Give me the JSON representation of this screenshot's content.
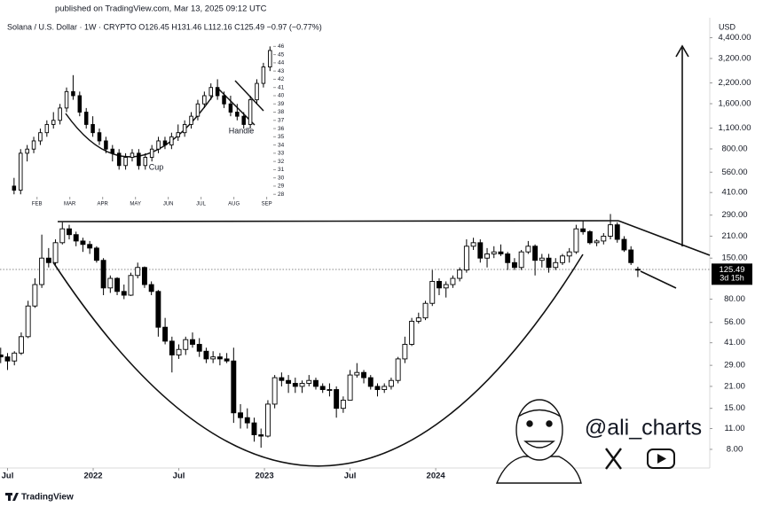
{
  "published": "published on TradingView.com, Mar 13, 2025 09:12 UTC",
  "watermark": "@ali_charts",
  "footer": "TradingView",
  "chart_data": [
    {
      "type": "candlestick",
      "title": "Solana / U.S. Dollar · 1W · CRYPTO  O126.45 H131.46 L112.16 C125.49 −0.97 (−0.77%)",
      "y_label": "USD",
      "countdown": "3d 15h",
      "log_scale": true,
      "up_color": "#ffffff",
      "down_color": "#000000",
      "xlim": [
        2021.456,
        2025.6
      ],
      "ylim": [
        6.01,
        5816
      ],
      "xticks": [
        {
          "value": 2021.5,
          "label": "Jul"
        },
        2022,
        {
          "value": 2022.5,
          "label": "Jul"
        },
        2023,
        {
          "value": 2023.5,
          "label": "Jul"
        },
        2024
      ],
      "yticks": [
        {
          "value": 8,
          "label": "8.00"
        },
        {
          "value": 11,
          "label": "11.00"
        },
        {
          "value": 15,
          "label": "15.00"
        },
        {
          "value": 21,
          "label": "21.00"
        },
        {
          "value": 29,
          "label": "29.00"
        },
        {
          "value": 41,
          "label": "41.00"
        },
        {
          "value": 56,
          "label": "56.00"
        },
        {
          "value": 80,
          "label": "80.00"
        },
        {
          "value": 150,
          "label": "150.00"
        },
        {
          "value": 210,
          "label": "210.00"
        },
        {
          "value": 290,
          "label": "290.00"
        },
        {
          "value": 410,
          "label": "410.00"
        },
        {
          "value": 560,
          "label": "560.00"
        },
        {
          "value": 800,
          "label": "800.00"
        },
        {
          "value": 1100,
          "label": "1,100.00"
        },
        {
          "value": 1600,
          "label": "1,600.00"
        },
        {
          "value": 2200,
          "label": "2,200.00"
        },
        {
          "value": 3200,
          "label": "3,200.00"
        },
        {
          "value": 4400,
          "label": "4,400.00"
        }
      ],
      "x": [
        2021.46,
        2021.5,
        2021.54,
        2021.58,
        2021.62,
        2021.66,
        2021.7,
        2021.74,
        2021.78,
        2021.82,
        2021.86,
        2021.9,
        2021.94,
        2021.98,
        2022.02,
        2022.06,
        2022.1,
        2022.14,
        2022.18,
        2022.22,
        2022.26,
        2022.3,
        2022.34,
        2022.38,
        2022.42,
        2022.46,
        2022.5,
        2022.54,
        2022.58,
        2022.62,
        2022.66,
        2022.7,
        2022.74,
        2022.78,
        2022.82,
        2022.86,
        2022.9,
        2022.94,
        2022.98,
        2023.02,
        2023.06,
        2023.1,
        2023.14,
        2023.18,
        2023.22,
        2023.26,
        2023.3,
        2023.34,
        2023.38,
        2023.42,
        2023.46,
        2023.5,
        2023.54,
        2023.58,
        2023.62,
        2023.66,
        2023.7,
        2023.74,
        2023.78,
        2023.82,
        2023.86,
        2023.9,
        2023.94,
        2023.98,
        2024.02,
        2024.06,
        2024.1,
        2024.14,
        2024.18,
        2024.22,
        2024.26,
        2024.3,
        2024.34,
        2024.38,
        2024.42,
        2024.46,
        2024.5,
        2024.54,
        2024.58,
        2024.62,
        2024.66,
        2024.7,
        2024.74,
        2024.78,
        2024.82,
        2024.86,
        2024.9,
        2024.94,
        2024.98,
        2025.02,
        2025.06,
        2025.1,
        2025.14,
        2025.18
      ],
      "ohlc": [
        [
          34,
          38,
          30,
          33
        ],
        [
          33,
          35,
          27,
          31
        ],
        [
          31,
          36,
          29,
          35
        ],
        [
          35,
          48,
          34,
          45
        ],
        [
          45,
          78,
          44,
          72
        ],
        [
          72,
          110,
          70,
          100
        ],
        [
          100,
          215,
          95,
          150
        ],
        [
          150,
          175,
          130,
          140
        ],
        [
          140,
          200,
          135,
          190
        ],
        [
          190,
          260,
          185,
          235
        ],
        [
          235,
          250,
          200,
          215
        ],
        [
          215,
          225,
          180,
          195
        ],
        [
          195,
          205,
          165,
          185
        ],
        [
          185,
          195,
          160,
          175
        ],
        [
          175,
          180,
          140,
          145
        ],
        [
          145,
          150,
          85,
          95
        ],
        [
          95,
          115,
          88,
          110
        ],
        [
          110,
          112,
          85,
          90
        ],
        [
          90,
          100,
          80,
          85
        ],
        [
          85,
          120,
          84,
          115
        ],
        [
          115,
          140,
          110,
          130
        ],
        [
          130,
          132,
          95,
          100
        ],
        [
          100,
          105,
          85,
          90
        ],
        [
          90,
          92,
          45,
          52
        ],
        [
          52,
          60,
          40,
          42
        ],
        [
          42,
          45,
          26,
          34
        ],
        [
          34,
          40,
          32,
          37
        ],
        [
          37,
          45,
          34,
          43
        ],
        [
          43,
          48,
          38,
          40
        ],
        [
          40,
          44,
          33,
          36
        ],
        [
          36,
          38,
          30,
          32
        ],
        [
          32,
          36,
          30,
          33
        ],
        [
          33,
          35,
          29,
          32
        ],
        [
          32,
          35,
          30,
          31
        ],
        [
          31,
          38,
          12,
          14
        ],
        [
          14,
          16,
          11,
          13
        ],
        [
          13,
          15,
          11,
          12
        ],
        [
          12,
          13,
          9,
          10
        ],
        [
          10,
          11,
          8.2,
          9.8
        ],
        [
          9.8,
          17,
          9.6,
          16
        ],
        [
          16,
          25,
          15,
          24
        ],
        [
          24,
          26,
          21,
          23
        ],
        [
          23,
          25,
          19,
          22
        ],
        [
          22,
          24,
          19,
          21
        ],
        [
          21,
          23,
          19,
          22
        ],
        [
          22,
          25,
          21,
          23
        ],
        [
          23,
          24,
          20,
          21
        ],
        [
          21,
          22,
          19,
          20
        ],
        [
          20,
          22,
          18,
          20
        ],
        [
          20,
          21,
          13,
          15
        ],
        [
          15,
          18,
          14,
          17
        ],
        [
          17,
          27,
          17,
          25
        ],
        [
          25,
          30,
          24,
          26
        ],
        [
          26,
          27,
          22,
          24
        ],
        [
          24,
          25,
          20,
          21
        ],
        [
          21,
          22,
          18,
          20
        ],
        [
          20,
          22,
          19,
          21
        ],
        [
          21,
          24,
          20,
          23
        ],
        [
          23,
          33,
          22,
          32
        ],
        [
          32,
          45,
          30,
          40
        ],
        [
          40,
          60,
          39,
          57
        ],
        [
          57,
          65,
          55,
          60
        ],
        [
          60,
          78,
          58,
          75
        ],
        [
          75,
          125,
          72,
          105
        ],
        [
          105,
          110,
          85,
          95
        ],
        [
          95,
          105,
          82,
          100
        ],
        [
          100,
          115,
          95,
          110
        ],
        [
          110,
          130,
          105,
          125
        ],
        [
          125,
          200,
          120,
          180
        ],
        [
          180,
          205,
          170,
          190
        ],
        [
          190,
          200,
          140,
          150
        ],
        [
          150,
          175,
          130,
          160
        ],
        [
          160,
          180,
          150,
          165
        ],
        [
          165,
          185,
          155,
          160
        ],
        [
          160,
          165,
          125,
          140
        ],
        [
          140,
          150,
          125,
          130
        ],
        [
          130,
          170,
          125,
          165
        ],
        [
          165,
          195,
          160,
          180
        ],
        [
          180,
          185,
          115,
          145
        ],
        [
          145,
          160,
          130,
          150
        ],
        [
          150,
          160,
          120,
          130
        ],
        [
          130,
          150,
          125,
          140
        ],
        [
          140,
          160,
          135,
          155
        ],
        [
          155,
          175,
          140,
          165
        ],
        [
          165,
          250,
          160,
          235
        ],
        [
          235,
          265,
          215,
          225
        ],
        [
          225,
          230,
          185,
          190
        ],
        [
          190,
          200,
          180,
          195
        ],
        [
          195,
          220,
          185,
          210
        ],
        [
          210,
          295,
          200,
          250
        ],
        [
          250,
          260,
          190,
          200
        ],
        [
          200,
          210,
          165,
          170
        ],
        [
          170,
          180,
          135,
          140
        ],
        [
          126.45,
          131.46,
          112.16,
          125.49
        ]
      ]
    },
    {
      "type": "candlestick",
      "annotations": [
        "Cup",
        "Handle"
      ],
      "log_scale": false,
      "up_color": "#ffffff",
      "down_color": "#000000",
      "xlim": [
        1.25,
        9.2
      ],
      "ylim": [
        27.7,
        46.9
      ],
      "xticks": [
        {
          "value": 2,
          "label": "FEB"
        },
        {
          "value": 3,
          "label": "MAR"
        },
        {
          "value": 4,
          "label": "APR"
        },
        {
          "value": 5,
          "label": "MAY"
        },
        {
          "value": 6,
          "label": "JUN"
        },
        {
          "value": 7,
          "label": "JUL"
        },
        {
          "value": 8,
          "label": "AUG"
        },
        {
          "value": 9,
          "label": "SEP"
        }
      ],
      "yticks": [
        28,
        29,
        30,
        31,
        32,
        33,
        34,
        35,
        36,
        37,
        38,
        39,
        40,
        41,
        42,
        43,
        44,
        45,
        46
      ],
      "x": [
        1.3,
        1.5,
        1.7,
        1.9,
        2.1,
        2.3,
        2.5,
        2.7,
        2.9,
        3.1,
        3.3,
        3.5,
        3.7,
        3.9,
        4.1,
        4.3,
        4.5,
        4.7,
        4.9,
        5.1,
        5.3,
        5.5,
        5.7,
        5.9,
        6.1,
        6.3,
        6.5,
        6.7,
        6.9,
        7.1,
        7.3,
        7.5,
        7.7,
        7.9,
        8.1,
        8.3,
        8.5,
        8.7,
        8.9,
        9.1
      ],
      "ohlc": [
        [
          29,
          30,
          28,
          28.5
        ],
        [
          28.5,
          33.5,
          28,
          33
        ],
        [
          33,
          34,
          32,
          33.5
        ],
        [
          33.5,
          35,
          33,
          34.5
        ],
        [
          34.5,
          36,
          34,
          35.5
        ],
        [
          35.5,
          37,
          35,
          36.5
        ],
        [
          36.5,
          38,
          36,
          37
        ],
        [
          37,
          39,
          36.5,
          38.5
        ],
        [
          38.5,
          41,
          38,
          40.5
        ],
        [
          40.5,
          42.5,
          39.5,
          40
        ],
        [
          40,
          40.5,
          37.5,
          38
        ],
        [
          38,
          38.5,
          36,
          36.5
        ],
        [
          36.5,
          37.5,
          35,
          35.5
        ],
        [
          35.5,
          36,
          34,
          34.5
        ],
        [
          34.5,
          35,
          33,
          33.5
        ],
        [
          33.5,
          34,
          32,
          33
        ],
        [
          33,
          33.5,
          31,
          31.5
        ],
        [
          31.5,
          33,
          31,
          32.5
        ],
        [
          32.5,
          33.5,
          32,
          33
        ],
        [
          33,
          33.5,
          31,
          31.5
        ],
        [
          31.5,
          33,
          31,
          32.5
        ],
        [
          32.5,
          34,
          32,
          33.5
        ],
        [
          33.5,
          35,
          33,
          34.5
        ],
        [
          34.5,
          35,
          33.5,
          34
        ],
        [
          34,
          35.5,
          33.5,
          35
        ],
        [
          35,
          36.5,
          34.5,
          35.5
        ],
        [
          35.5,
          37,
          35,
          36.5
        ],
        [
          36.5,
          38,
          36,
          37.5
        ],
        [
          37.5,
          39.5,
          37,
          39
        ],
        [
          39,
          40.5,
          38.5,
          40
        ],
        [
          40,
          41.5,
          39.5,
          41
        ],
        [
          41,
          42,
          39.5,
          40
        ],
        [
          40,
          40.5,
          38.5,
          39
        ],
        [
          39,
          40,
          37.5,
          38
        ],
        [
          38,
          39,
          37,
          37.5
        ],
        [
          37.5,
          38,
          36,
          36.5
        ],
        [
          36.5,
          40,
          36,
          39.5
        ],
        [
          39.5,
          42,
          39,
          41.5
        ],
        [
          41.5,
          44,
          41,
          43.5
        ],
        [
          43.5,
          46,
          43,
          45.5
        ]
      ]
    }
  ]
}
